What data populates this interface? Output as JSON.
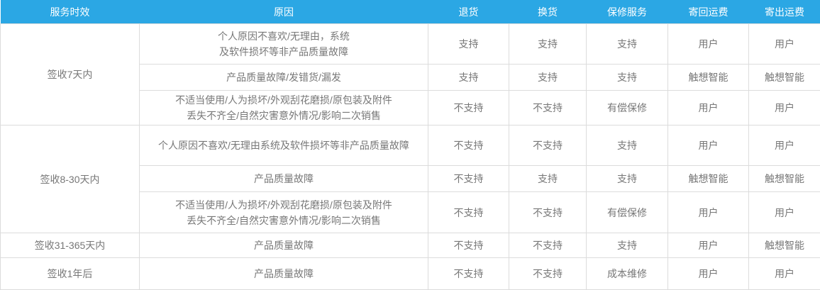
{
  "table": {
    "header": [
      "服务时效",
      "原因",
      "退货",
      "换货",
      "保修服务",
      "寄回运费",
      "寄出运费"
    ],
    "groups": [
      {
        "period": "签收7天内",
        "rows": [
          {
            "reason_lines": [
              "个人原因不喜欢/无理由，系统",
              "及软件损坏等非产品质量故障"
            ],
            "return": "支持",
            "exchange": "支持",
            "warranty": "支持",
            "ship_back_fee": "用户",
            "ship_out_fee": "用户"
          },
          {
            "reason_lines": [
              "产品质量故障/发错货/漏发"
            ],
            "return": "支持",
            "exchange": "支持",
            "warranty": "支持",
            "ship_back_fee": "触想智能",
            "ship_out_fee": "触想智能"
          },
          {
            "reason_lines": [
              "不适当使用/人为损坏/外观刮花磨损/原包装及附件",
              "丢失不齐全/自然灾害意外情况/影响二次销售"
            ],
            "return": "不支持",
            "exchange": "不支持",
            "warranty": "有偿保修",
            "ship_back_fee": "用户",
            "ship_out_fee": "用户"
          }
        ]
      },
      {
        "period": "签收8-30天内",
        "rows": [
          {
            "reason_lines": [
              "个人原因不喜欢/无理由系统及软件损坏等非产品质量故障"
            ],
            "return": "不支持",
            "exchange": "不支持",
            "warranty": "支持",
            "ship_back_fee": "用户",
            "ship_out_fee": "用户"
          },
          {
            "reason_lines": [
              "产品质量故障"
            ],
            "return": "不支持",
            "exchange": "支持",
            "warranty": "支持",
            "ship_back_fee": "触想智能",
            "ship_out_fee": "触想智能"
          },
          {
            "reason_lines": [
              "不适当使用/人为损坏/外观刮花磨损/原包装及附件",
              "丢失不齐全/自然灾害意外情况/影响二次销售"
            ],
            "return": "不支持",
            "exchange": "不支持",
            "warranty": "有偿保修",
            "ship_back_fee": "用户",
            "ship_out_fee": "用户"
          }
        ]
      },
      {
        "period": "签收31-365天内",
        "rows": [
          {
            "reason_lines": [
              "产品质量故障"
            ],
            "return": "不支持",
            "exchange": "不支持",
            "warranty": "支持",
            "ship_back_fee": "用户",
            "ship_out_fee": "触想智能"
          }
        ]
      },
      {
        "period": "签收1年后",
        "rows": [
          {
            "reason_lines": [
              "产品质量故障"
            ],
            "return": "不支持",
            "exchange": "不支持",
            "warranty": "成本维修",
            "ship_back_fee": "用户",
            "ship_out_fee": "用户"
          }
        ]
      }
    ],
    "colors": {
      "header_bg": "#2ba7e4",
      "header_text": "#ffffff",
      "body_text": "#777777",
      "border": "#dcdcdc",
      "background": "#ffffff"
    }
  }
}
